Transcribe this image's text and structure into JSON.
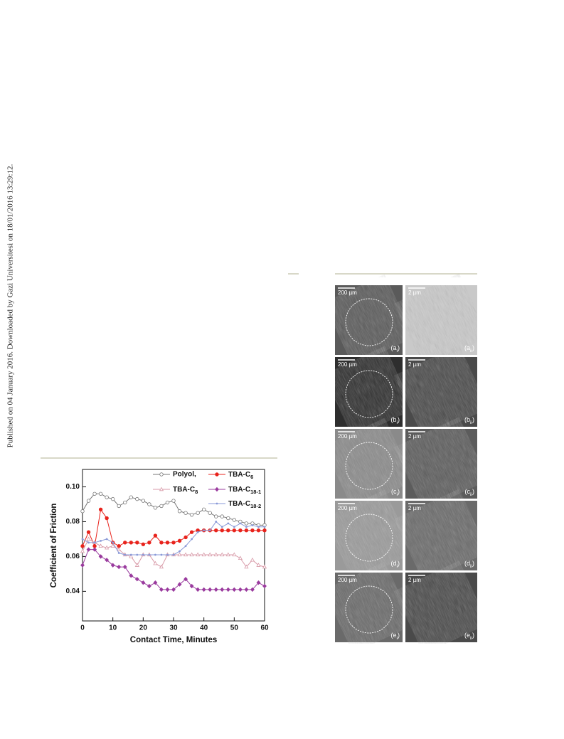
{
  "sidebar": "Published on 04 January 2016. Downloaded by Gazi Universitesi on 18/01/2016 13:29:12.",
  "chart_data": {
    "type": "line",
    "xlabel": "Contact Time, Minutes",
    "ylabel": "Coefficient of Friction",
    "x": [
      0,
      2,
      4,
      6,
      8,
      10,
      12,
      14,
      16,
      18,
      20,
      22,
      24,
      26,
      28,
      30,
      32,
      34,
      36,
      38,
      40,
      42,
      44,
      46,
      48,
      50,
      52,
      54,
      56,
      58,
      60
    ],
    "xlim": [
      0,
      60
    ],
    "xticks": [
      0,
      10,
      20,
      30,
      40,
      50,
      60
    ],
    "ylim": [
      0.023,
      0.11
    ],
    "yticks": [
      0.04,
      0.06,
      0.08,
      {
        "value": 0.1,
        "label": "0.10"
      }
    ],
    "series": [
      {
        "name": "Polyol,",
        "color": "#777777",
        "marker": "circle-open",
        "values": [
          0.086,
          0.092,
          0.096,
          0.096,
          0.094,
          0.093,
          0.089,
          0.091,
          0.094,
          0.093,
          0.092,
          0.09,
          0.088,
          0.089,
          0.091,
          0.092,
          0.086,
          0.085,
          0.084,
          0.085,
          0.087,
          0.085,
          0.083,
          0.083,
          0.082,
          0.081,
          0.08,
          0.079,
          0.079,
          0.078,
          0.078
        ]
      },
      {
        "name": "TBA-C6",
        "color": "#e8231c",
        "marker": "circle",
        "values": [
          0.066,
          0.074,
          0.066,
          0.087,
          0.082,
          0.068,
          0.066,
          0.068,
          0.068,
          0.068,
          0.067,
          0.068,
          0.072,
          0.068,
          0.068,
          0.068,
          0.069,
          0.071,
          0.074,
          0.075,
          0.075,
          0.075,
          0.075,
          0.075,
          0.075,
          0.075,
          0.075,
          0.075,
          0.075,
          0.075,
          0.075
        ]
      },
      {
        "name": "TBA-C8",
        "color": "#d89aa8",
        "marker": "triangle-open",
        "values": [
          0.063,
          0.07,
          0.068,
          0.066,
          0.065,
          0.066,
          0.064,
          0.061,
          0.06,
          0.055,
          0.061,
          0.061,
          0.056,
          0.054,
          0.061,
          0.061,
          0.061,
          0.061,
          0.061,
          0.061,
          0.061,
          0.061,
          0.061,
          0.061,
          0.061,
          0.061,
          0.059,
          0.054,
          0.058,
          0.055,
          0.054
        ]
      },
      {
        "name": "TBA-C18-1",
        "color": "#9a3b9e",
        "marker": "diamond",
        "values": [
          0.055,
          0.064,
          0.064,
          0.06,
          0.058,
          0.055,
          0.054,
          0.054,
          0.049,
          0.047,
          0.045,
          0.043,
          0.045,
          0.041,
          0.041,
          0.041,
          0.044,
          0.047,
          0.043,
          0.041,
          0.041,
          0.041,
          0.041,
          0.041,
          0.041,
          0.041,
          0.041,
          0.041,
          0.041,
          0.045,
          0.043
        ]
      },
      {
        "name": "TBA-C18-2",
        "color": "#8a9ad8",
        "marker": "dot",
        "values": [
          0.07,
          0.068,
          0.068,
          0.069,
          0.07,
          0.068,
          0.062,
          0.061,
          0.061,
          0.061,
          0.061,
          0.061,
          0.061,
          0.061,
          0.061,
          0.061,
          0.063,
          0.066,
          0.07,
          0.074,
          0.075,
          0.075,
          0.08,
          0.077,
          0.079,
          0.077,
          0.079,
          0.077,
          0.078,
          0.077,
          0.077
        ]
      }
    ]
  },
  "figure": {
    "panels": [
      [
        {
          "scale": "200 µm",
          "label": "(ai)"
        },
        {
          "scale": "2 µm",
          "label": "(aii)"
        }
      ],
      [
        {
          "scale": "200 µm",
          "label": "(bi)"
        },
        {
          "scale": "2 µm",
          "label": "(bii)"
        }
      ],
      [
        {
          "scale": "200 µm",
          "label": "(ci)"
        },
        {
          "scale": "2 µm",
          "label": "(cii)"
        }
      ],
      [
        {
          "scale": "200 µm",
          "label": "(di)"
        },
        {
          "scale": "2 µm",
          "label": "(dii)"
        }
      ],
      [
        {
          "scale": "200 µm",
          "label": "(ei)"
        },
        {
          "scale": "2 µm",
          "label": "(eii)"
        }
      ]
    ]
  }
}
